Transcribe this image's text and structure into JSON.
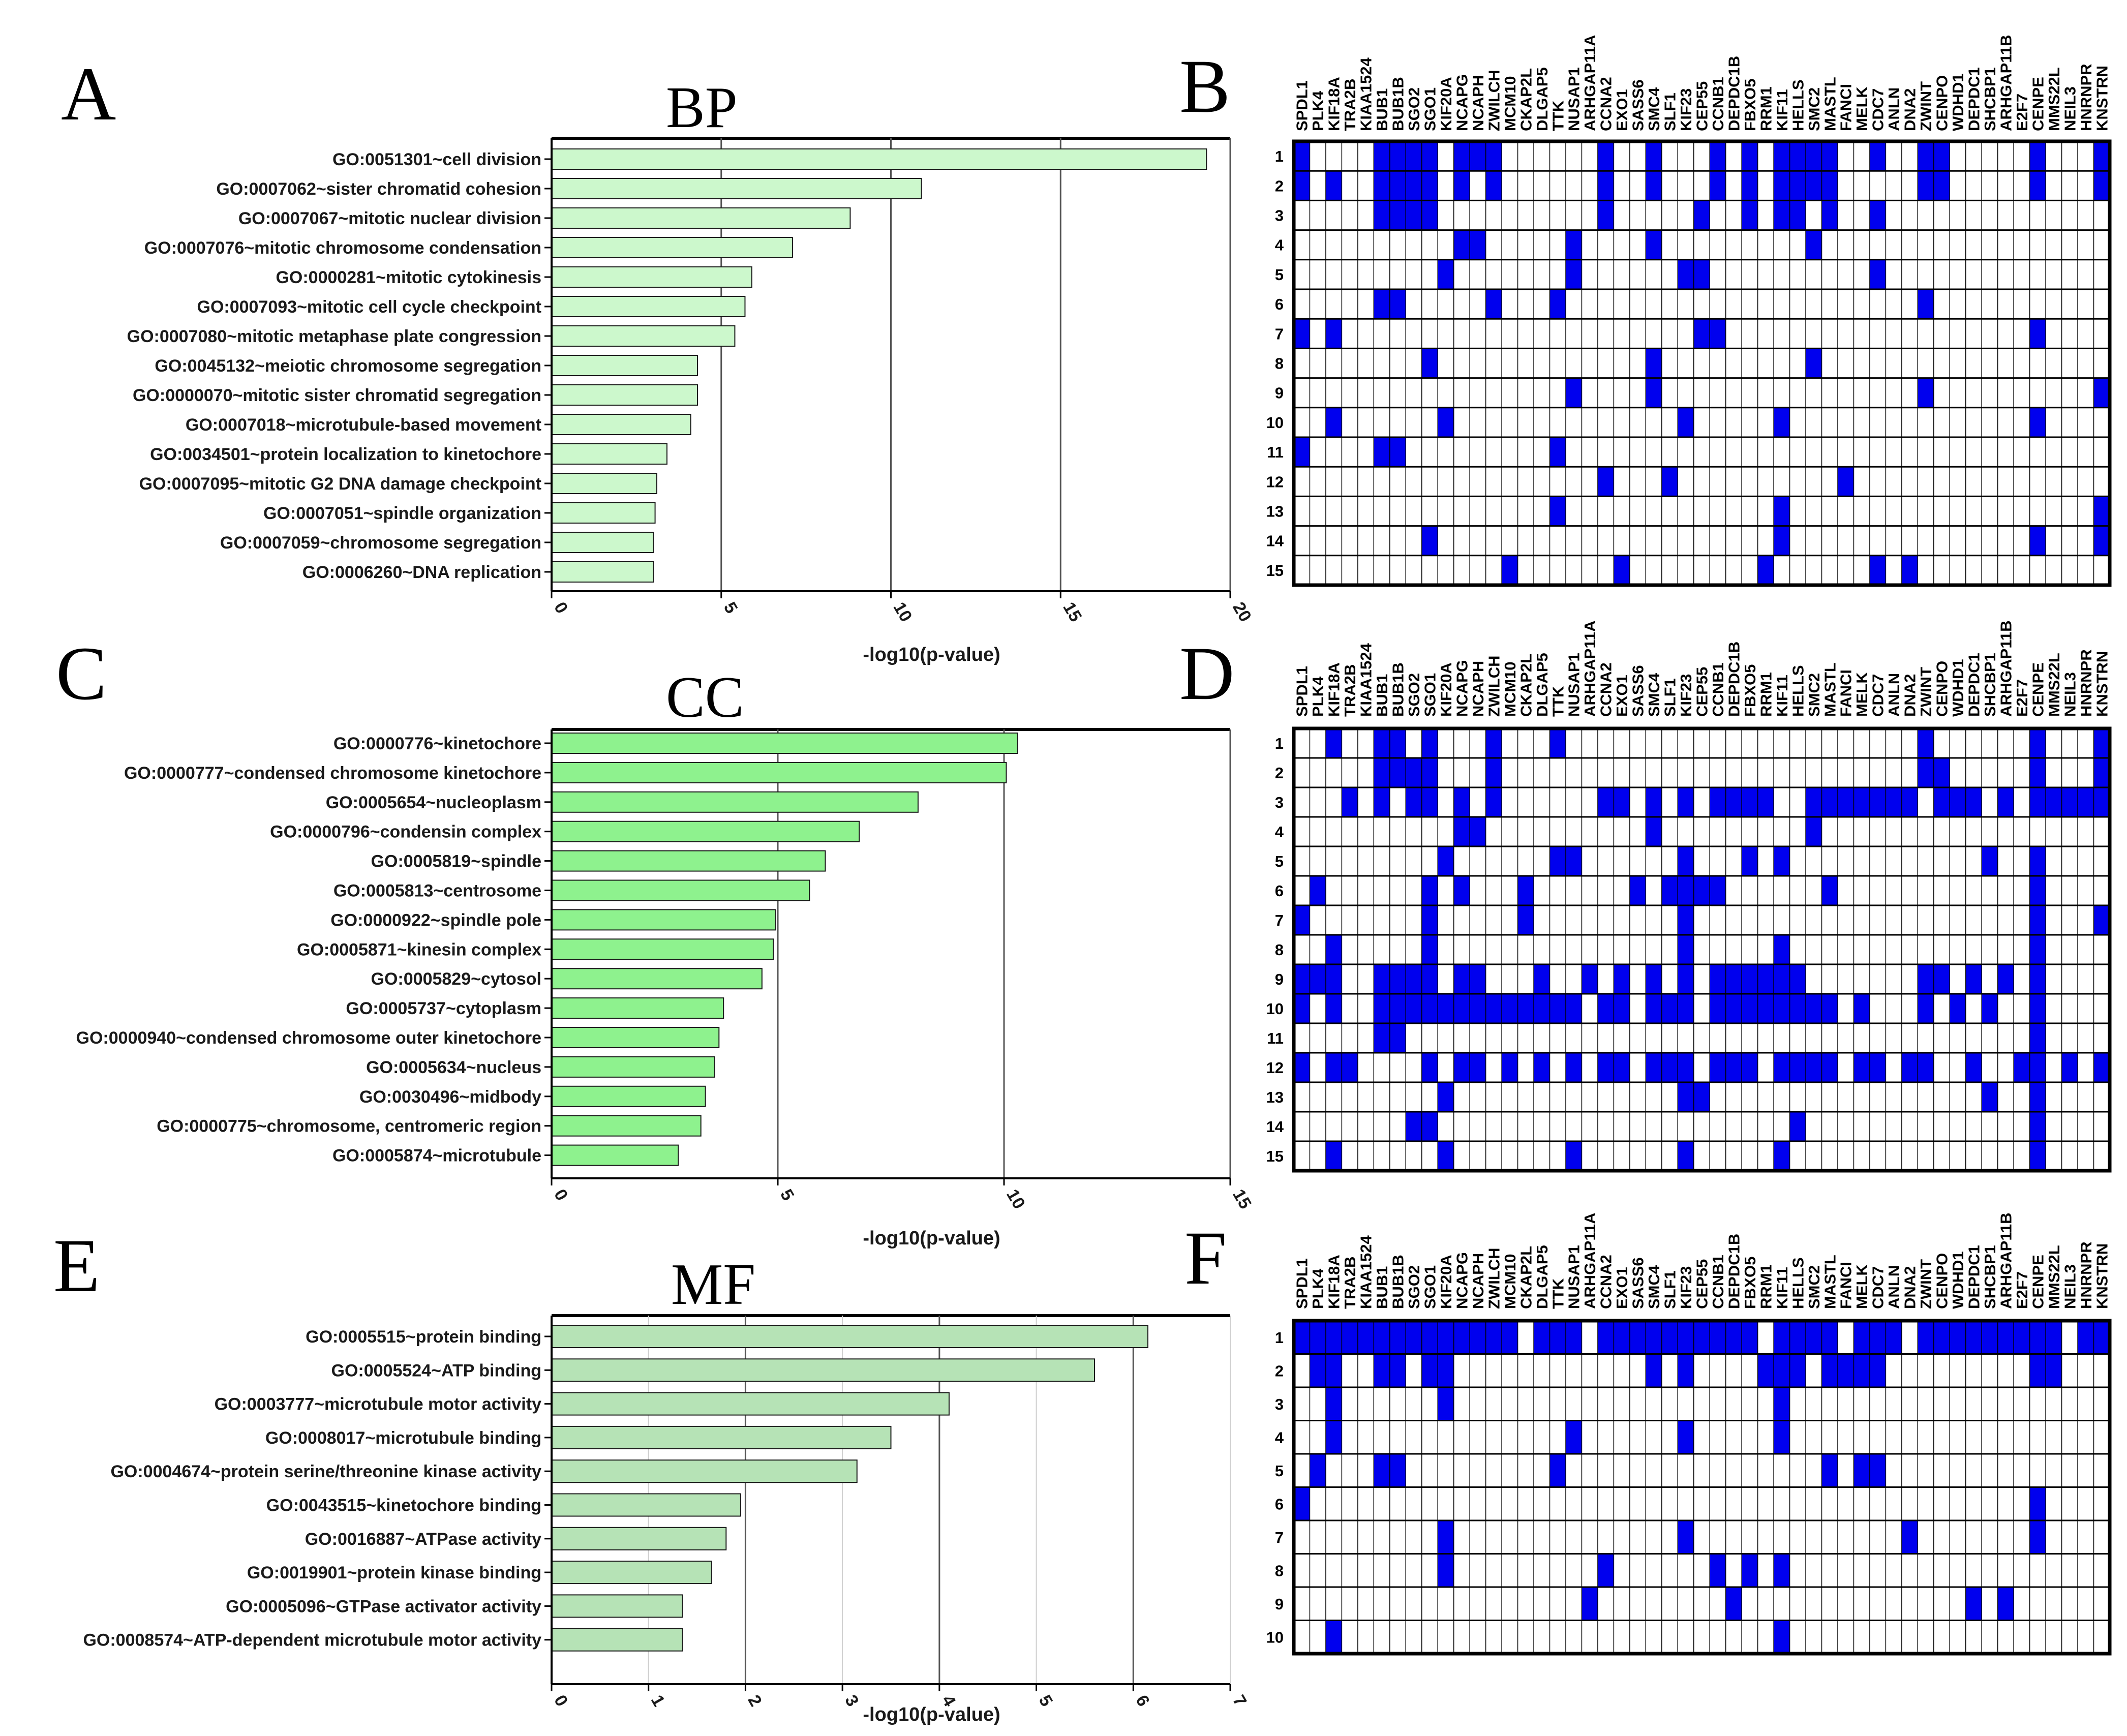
{
  "figure": {
    "panel_letters": [
      "A",
      "B",
      "C",
      "D",
      "E",
      "F"
    ],
    "colors": {
      "bp_bar": "#ccf8cc",
      "cc_bar": "#8ef28e",
      "mf_bar": "#b6e3b6",
      "heat_on": "#0000ee",
      "heat_off": "#ffffff",
      "grid": "#000000"
    }
  },
  "genes": [
    "SPDL1",
    "PLK4",
    "KIF18A",
    "TRA2B",
    "KIAA1524",
    "BUB1",
    "BUB1B",
    "SGO2",
    "SGO1",
    "KIF20A",
    "NCAPG",
    "NCAPH",
    "ZWILCH",
    "MCM10",
    "CKAP2L",
    "DLGAP5",
    "TTK",
    "NUSAP1",
    "ARHGAP11A",
    "CCNA2",
    "EXO1",
    "SASS6",
    "SMC4",
    "SLF1",
    "KIF23",
    "CEP55",
    "CCNB1",
    "DEPDC1B",
    "FBXO5",
    "RRM1",
    "KIF11",
    "HELLS",
    "SMC2",
    "MASTL",
    "FANCI",
    "MELK",
    "CDC7",
    "ANLN",
    "DNA2",
    "ZWINT",
    "CENPO",
    "WDHD1",
    "DEPDC1",
    "SHCBP1",
    "ARHGAP11B",
    "E2F7",
    "CENPE",
    "MMS22L",
    "NEIL3",
    "HNRNPR",
    "KNSTRN"
  ],
  "chart_data": [
    {
      "id": "A",
      "type": "bar",
      "orientation": "horizontal",
      "title": "BP",
      "xlabel": "-log10(p-value)",
      "xlim": [
        0,
        20
      ],
      "xticks": [
        "0",
        "5",
        "10",
        "15",
        "20"
      ],
      "categories": [
        "GO:0051301~cell division",
        "GO:0007062~sister chromatid cohesion",
        "GO:0007067~mitotic nuclear division",
        "GO:0007076~mitotic chromosome condensation",
        "GO:0000281~mitotic cytokinesis",
        "GO:0007093~mitotic cell cycle checkpoint",
        "GO:0007080~mitotic metaphase plate congression",
        "GO:0045132~meiotic chromosome segregation",
        "GO:0000070~mitotic sister chromatid segregation",
        "GO:0007018~microtubule-based movement",
        "GO:0034501~protein localization to kinetochore",
        "GO:0007095~mitotic G2 DNA damage checkpoint",
        "GO:0007051~spindle organization",
        "GO:0007059~chromosome segregation",
        "GO:0006260~DNA replication"
      ],
      "values": [
        19.3,
        10.9,
        8.8,
        7.1,
        5.9,
        5.7,
        5.4,
        4.3,
        4.3,
        4.1,
        3.4,
        3.1,
        3.05,
        3.0,
        3.0
      ]
    },
    {
      "id": "C",
      "type": "bar",
      "orientation": "horizontal",
      "title": "CC",
      "xlabel": "-log10(p-value)",
      "xlim": [
        0,
        15
      ],
      "xticks": [
        "0",
        "5",
        "10",
        "15"
      ],
      "categories": [
        "GO:0000776~kinetochore",
        "GO:0000777~condensed chromosome kinetochore",
        "GO:0005654~nucleoplasm",
        "GO:0000796~condensin complex",
        "GO:0005819~spindle",
        "GO:0005813~centrosome",
        "GO:0000922~spindle pole",
        "GO:0005871~kinesin complex",
        "GO:0005829~cytosol",
        "GO:0005737~cytoplasm",
        "GO:0000940~condensed chromosome outer kinetochore",
        "GO:0005634~nucleus",
        "GO:0030496~midbody",
        "GO:0000775~chromosome, centromeric region",
        "GO:0005874~microtubule"
      ],
      "values": [
        10.3,
        10.05,
        8.1,
        6.8,
        6.05,
        5.7,
        4.95,
        4.9,
        4.65,
        3.8,
        3.7,
        3.6,
        3.4,
        3.3,
        2.8
      ]
    },
    {
      "id": "E",
      "type": "bar",
      "orientation": "horizontal",
      "title": "MF",
      "xlabel": "-log10(p-value)",
      "xlim": [
        0,
        7
      ],
      "xticks": [
        "0",
        "1",
        "2",
        "3",
        "4",
        "5",
        "6",
        "7"
      ],
      "categories": [
        "GO:0005515~protein binding",
        "GO:0005524~ATP binding",
        "GO:0003777~microtubule motor activity",
        "GO:0008017~microtubule binding",
        "GO:0004674~protein serine/threonine kinase activity",
        "GO:0043515~kinetochore binding",
        "GO:0016887~ATPase activity",
        "GO:0019901~protein kinase binding",
        "GO:0005096~GTPase activator activity",
        "GO:0008574~ATP-dependent microtubule motor activity"
      ],
      "values": [
        6.15,
        5.6,
        4.1,
        3.5,
        3.15,
        1.95,
        1.8,
        1.65,
        1.35,
        1.35
      ]
    },
    {
      "id": "B",
      "type": "heatmap",
      "rows": [
        "1",
        "2",
        "3",
        "4",
        "5",
        "6",
        "7",
        "8",
        "9",
        "10",
        "11",
        "12",
        "13",
        "14",
        "15"
      ],
      "columns_ref": "genes",
      "cells": [
        [
          0,
          5,
          6,
          7,
          8,
          10,
          11,
          12,
          19,
          22,
          26,
          28,
          30,
          31,
          32,
          33,
          36,
          39,
          40,
          46,
          50
        ],
        [
          0,
          2,
          5,
          6,
          7,
          8,
          10,
          12,
          19,
          22,
          26,
          28,
          30,
          31,
          32,
          33,
          39,
          40,
          46,
          50
        ],
        [
          5,
          6,
          7,
          8,
          19,
          25,
          28,
          30,
          31,
          33,
          36
        ],
        [
          10,
          11,
          17,
          22,
          32
        ],
        [
          9,
          17,
          24,
          25,
          36
        ],
        [
          5,
          6,
          12,
          16,
          39
        ],
        [
          0,
          2,
          25,
          26,
          46
        ],
        [
          8,
          22,
          32
        ],
        [
          17,
          22,
          39,
          50
        ],
        [
          2,
          9,
          24,
          30,
          46
        ],
        [
          0,
          5,
          6,
          16
        ],
        [
          19,
          23,
          34
        ],
        [
          16,
          30,
          50
        ],
        [
          8,
          30,
          46,
          50
        ],
        [
          13,
          20,
          29,
          36,
          38
        ]
      ]
    },
    {
      "id": "D",
      "type": "heatmap",
      "rows": [
        "1",
        "2",
        "3",
        "4",
        "5",
        "6",
        "7",
        "8",
        "9",
        "10",
        "11",
        "12",
        "13",
        "14",
        "15"
      ],
      "columns_ref": "genes",
      "cells": [
        [
          2,
          5,
          6,
          8,
          12,
          16,
          39,
          46,
          50
        ],
        [
          5,
          6,
          7,
          8,
          12,
          39,
          40,
          46,
          50
        ],
        [
          3,
          5,
          7,
          8,
          10,
          12,
          19,
          20,
          22,
          24,
          26,
          27,
          28,
          29,
          32,
          33,
          34,
          35,
          36,
          37,
          38,
          40,
          41,
          42,
          44,
          46,
          47,
          48,
          49,
          50
        ],
        [
          10,
          11,
          22,
          32
        ],
        [
          9,
          16,
          17,
          24,
          28,
          30,
          43,
          46
        ],
        [
          1,
          8,
          10,
          14,
          21,
          23,
          24,
          25,
          26,
          33,
          46
        ],
        [
          0,
          8,
          14,
          24,
          46,
          50
        ],
        [
          2,
          8,
          24,
          30,
          46
        ],
        [
          0,
          1,
          2,
          5,
          6,
          7,
          8,
          10,
          11,
          15,
          18,
          20,
          22,
          24,
          26,
          27,
          28,
          29,
          30,
          31,
          39,
          40,
          42,
          44,
          46
        ],
        [
          0,
          2,
          5,
          6,
          7,
          8,
          9,
          10,
          11,
          12,
          13,
          14,
          15,
          16,
          17,
          19,
          20,
          22,
          23,
          24,
          26,
          27,
          28,
          29,
          30,
          31,
          32,
          33,
          35,
          39,
          41,
          43,
          46
        ],
        [
          5,
          6,
          46
        ],
        [
          0,
          2,
          3,
          8,
          10,
          11,
          13,
          15,
          17,
          19,
          20,
          22,
          23,
          24,
          26,
          27,
          28,
          30,
          31,
          32,
          33,
          35,
          36,
          38,
          39,
          42,
          45,
          46,
          48,
          50
        ],
        [
          9,
          24,
          25,
          43,
          46
        ],
        [
          7,
          8,
          31,
          46
        ],
        [
          2,
          9,
          17,
          24,
          30,
          46
        ]
      ]
    },
    {
      "id": "F",
      "type": "heatmap",
      "rows": [
        "1",
        "2",
        "3",
        "4",
        "5",
        "6",
        "7",
        "8",
        "9",
        "10"
      ],
      "columns_ref": "genes",
      "cells": [
        [
          0,
          1,
          2,
          3,
          4,
          5,
          6,
          7,
          8,
          9,
          10,
          11,
          12,
          13,
          15,
          16,
          17,
          19,
          20,
          21,
          22,
          23,
          24,
          25,
          26,
          27,
          28,
          30,
          31,
          32,
          33,
          35,
          36,
          37,
          39,
          40,
          41,
          42,
          43,
          44,
          45,
          46,
          47,
          49,
          50
        ],
        [
          1,
          2,
          5,
          6,
          8,
          9,
          22,
          24,
          29,
          30,
          31,
          33,
          34,
          35,
          36,
          46,
          47
        ],
        [
          2,
          9,
          30
        ],
        [
          2,
          17,
          24,
          30
        ],
        [
          1,
          5,
          6,
          16,
          33,
          35,
          36
        ],
        [
          0,
          46
        ],
        [
          9,
          24,
          38,
          46
        ],
        [
          9,
          19,
          26,
          28,
          30
        ],
        [
          18,
          27,
          42,
          44
        ],
        [
          2,
          30
        ]
      ]
    }
  ]
}
